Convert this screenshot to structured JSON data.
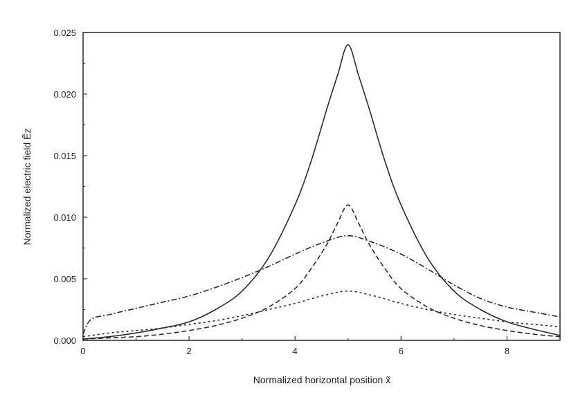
{
  "chart_data": {
    "type": "line",
    "title": "",
    "xlabel": "Normalized horizontal position x̃",
    "ylabel": "Normalized electric field Ẽz",
    "xlim": [
      0,
      9
    ],
    "ylim": [
      0,
      0.025
    ],
    "xticks": [
      0,
      2,
      4,
      6,
      8
    ],
    "xtick_labels": [
      "0",
      "2",
      "4",
      "6",
      "8"
    ],
    "yticks": [
      0,
      0.005,
      0.01,
      0.015,
      0.02,
      0.025
    ],
    "ytick_labels": [
      "0.000",
      "0.005",
      "0.010",
      "0.015",
      "0.020",
      "0.025"
    ],
    "grid": false,
    "legend": "none",
    "series": [
      {
        "style": "solid",
        "x": [
          0,
          0.5,
          1,
          1.5,
          2,
          2.5,
          3,
          3.5,
          4,
          4.3,
          4.6,
          4.8,
          5,
          5.2,
          5.4,
          5.7,
          6,
          6.5,
          7,
          7.5,
          8,
          8.5,
          9
        ],
        "y": [
          0.0001,
          0.0003,
          0.0006,
          0.001,
          0.0015,
          0.0025,
          0.004,
          0.0067,
          0.011,
          0.0145,
          0.0188,
          0.0215,
          0.024,
          0.0215,
          0.0188,
          0.0145,
          0.011,
          0.0067,
          0.004,
          0.0025,
          0.0015,
          0.0009,
          0.0004
        ]
      },
      {
        "style": "dash",
        "x": [
          0,
          0.5,
          1,
          1.5,
          2,
          2.5,
          3,
          3.5,
          4,
          4.3,
          4.6,
          4.8,
          5,
          5.2,
          5.4,
          5.7,
          6,
          6.5,
          7,
          7.5,
          8,
          8.5,
          9
        ],
        "y": [
          0.0001,
          0.0002,
          0.0003,
          0.0005,
          0.0008,
          0.0012,
          0.0018,
          0.0027,
          0.0042,
          0.0058,
          0.0078,
          0.0095,
          0.011,
          0.0095,
          0.0078,
          0.0058,
          0.0042,
          0.0027,
          0.0018,
          0.0012,
          0.0008,
          0.0005,
          0.0003
        ]
      },
      {
        "style": "dashdot",
        "x": [
          0,
          0.15,
          0.5,
          1,
          1.5,
          2,
          2.5,
          3,
          3.5,
          4,
          4.5,
          5,
          5.5,
          6,
          6.5,
          7,
          7.5,
          8,
          8.5,
          9
        ],
        "y": [
          0.0005,
          0.0017,
          0.0021,
          0.0026,
          0.0031,
          0.0036,
          0.0043,
          0.0051,
          0.006,
          0.007,
          0.0079,
          0.0085,
          0.0079,
          0.007,
          0.0058,
          0.0045,
          0.0034,
          0.0027,
          0.0023,
          0.0019
        ]
      },
      {
        "style": "dot",
        "x": [
          0,
          0.5,
          1,
          1.5,
          2,
          2.5,
          3,
          3.5,
          4,
          4.5,
          5,
          5.5,
          6,
          6.5,
          7,
          7.5,
          8,
          8.5,
          9
        ],
        "y": [
          0.0003,
          0.0006,
          0.0008,
          0.001,
          0.0013,
          0.0016,
          0.002,
          0.0025,
          0.003,
          0.0036,
          0.004,
          0.0036,
          0.003,
          0.0025,
          0.0021,
          0.0018,
          0.0015,
          0.0013,
          0.0011
        ]
      }
    ]
  }
}
